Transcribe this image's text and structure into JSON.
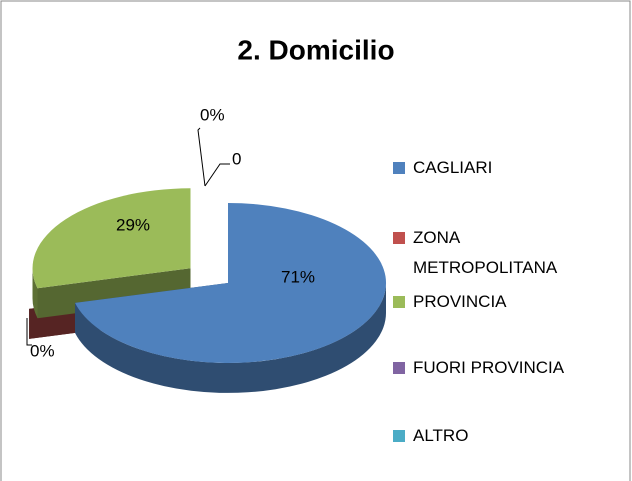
{
  "chart_data": {
    "type": "pie3d",
    "title": "2. Domicilio",
    "categories": [
      "CAGLIARI",
      "ZONA METROPOLITANA",
      "PROVINCIA",
      "FUORI PROVINCIA",
      "ALTRO"
    ],
    "values": [
      71,
      0,
      29,
      0,
      0
    ],
    "value_labels": [
      "71%",
      "0%",
      "29%",
      "0%",
      "0"
    ],
    "colors": [
      "#4f81bd",
      "#c0504d",
      "#9bbb59",
      "#8064a2",
      "#4bacc6"
    ],
    "legend": "right"
  }
}
